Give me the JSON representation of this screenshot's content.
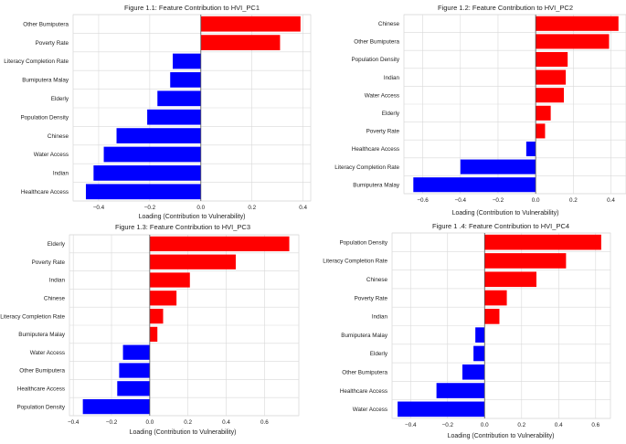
{
  "colors": {
    "positive": "#ff0000",
    "negative": "#0000ff"
  },
  "chart_data": [
    {
      "type": "bar",
      "orientation": "horizontal",
      "title": "Figure 1.1: Feature Contribution to HVI_PC1",
      "xlabel": "Loading (Contribution to Vulnerability)",
      "categories": [
        "Other Bumiputera",
        "Poverty Rate",
        "Literacy Completion Rate",
        "Bumiputera Malay",
        "Elderly",
        "Population Density",
        "Chinese",
        "Water Access",
        "Indian",
        "Healthcare Access"
      ],
      "values": [
        0.39,
        0.31,
        -0.11,
        -0.12,
        -0.17,
        -0.21,
        -0.33,
        -0.38,
        -0.42,
        -0.45
      ],
      "xlim": [
        -0.5,
        0.43
      ],
      "xticks": [
        -0.4,
        -0.2,
        0.0,
        0.2,
        0.4
      ],
      "xtick_labels": [
        "−0.4",
        "−0.2",
        "0.0",
        "0.2",
        "0.4"
      ]
    },
    {
      "type": "bar",
      "orientation": "horizontal",
      "title": "Figure 1.2: Feature Contribution to HVI_PC2",
      "xlabel": "Loading (Contribution to Vulnerability)",
      "categories": [
        "Chinese",
        "Other Bumiputera",
        "Population Density",
        "Indian",
        "Water Access",
        "Elderly",
        "Poverty Rate",
        "Healthcare Access",
        "Literacy Completion Rate",
        "Bumiputera Malay"
      ],
      "values": [
        0.44,
        0.39,
        0.17,
        0.16,
        0.15,
        0.08,
        0.05,
        -0.05,
        -0.4,
        -0.65
      ],
      "xlim": [
        -0.7,
        0.48
      ],
      "xticks": [
        -0.6,
        -0.4,
        -0.2,
        0.0,
        0.2,
        0.4
      ],
      "xtick_labels": [
        "−0.6",
        "−0.4",
        "−0.2",
        "0.0",
        "0.2",
        "0.4"
      ]
    },
    {
      "type": "bar",
      "orientation": "horizontal",
      "title": "Figure 1.3: Feature Contribution to HVI_PC3",
      "xlabel": "Loading (Contribution to Vulnerability)",
      "categories": [
        "Elderly",
        "Poverty Rate",
        "Indian",
        "Chinese",
        "Literacy Completion Rate",
        "Bumiputera Malay",
        "Water Access",
        "Other Bumiputera",
        "Healthcare Access",
        "Population Density"
      ],
      "values": [
        0.73,
        0.45,
        0.21,
        0.14,
        0.07,
        0.04,
        -0.14,
        -0.16,
        -0.17,
        -0.35
      ],
      "xlim": [
        -0.42,
        0.78
      ],
      "xticks": [
        -0.4,
        -0.2,
        0.0,
        0.2,
        0.4,
        0.6
      ],
      "xtick_labels": [
        "−0.4",
        "−0.2",
        "0.0",
        "0.2",
        "0.4",
        "0.6"
      ]
    },
    {
      "type": "bar",
      "orientation": "horizontal",
      "title": "Figure 1 .4: Feature Contribution to HVI_PC4",
      "xlabel": "Loading (Contribution to Vulnerability)",
      "categories": [
        "Population Density",
        "Literacy Completion Rate",
        "Chinese",
        "Poverty Rate",
        "Indian",
        "Bumiputera Malay",
        "Elderly",
        "Other Bumiputera",
        "Healthcare Access",
        "Water Access"
      ],
      "values": [
        0.63,
        0.44,
        0.28,
        0.12,
        0.08,
        -0.05,
        -0.06,
        -0.12,
        -0.26,
        -0.47
      ],
      "xlim": [
        -0.5,
        0.68
      ],
      "xticks": [
        -0.4,
        -0.2,
        0.0,
        0.2,
        0.4,
        0.6
      ],
      "xtick_labels": [
        "−0.4",
        "−0.2",
        "0.0",
        "0.2",
        "0.4",
        "0.6"
      ]
    }
  ]
}
